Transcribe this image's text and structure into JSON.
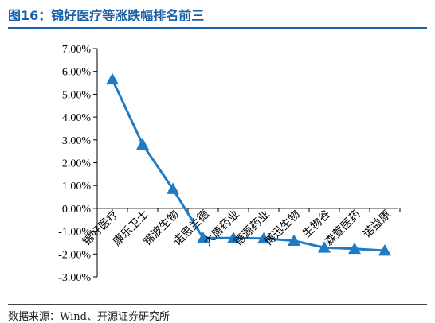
{
  "title": "图16：锦好医疗等涨跌幅排名前三",
  "source": "数据来源：Wind、开源证券研究所",
  "colors": {
    "series": "#1f7bc4",
    "title": "#1a5fa8"
  },
  "chart_data": {
    "type": "line",
    "categories": [
      "锦好医疗",
      "康乐卫士",
      "锦波生物",
      "诺思兰德",
      "大唐药业",
      "德源药业",
      "博迅生物",
      "生物谷",
      "森萱医药",
      "诺益康"
    ],
    "values": [
      5.65,
      2.8,
      0.85,
      -1.3,
      -1.3,
      -1.32,
      -1.42,
      -1.72,
      -1.77,
      -1.85
    ],
    "ylim": [
      -3,
      7
    ],
    "ytick_values": [
      7,
      6,
      5,
      4,
      3,
      2,
      1,
      0,
      -1,
      -2,
      -3
    ],
    "ytick_labels": [
      "7.00%",
      "6.00%",
      "5.00%",
      "4.00%",
      "3.00%",
      "2.00%",
      "1.00%",
      "0.00%",
      "-1.00%",
      "-2.00%",
      "-3.00%"
    ],
    "marker": "triangle",
    "grid": false,
    "legend": "none"
  }
}
